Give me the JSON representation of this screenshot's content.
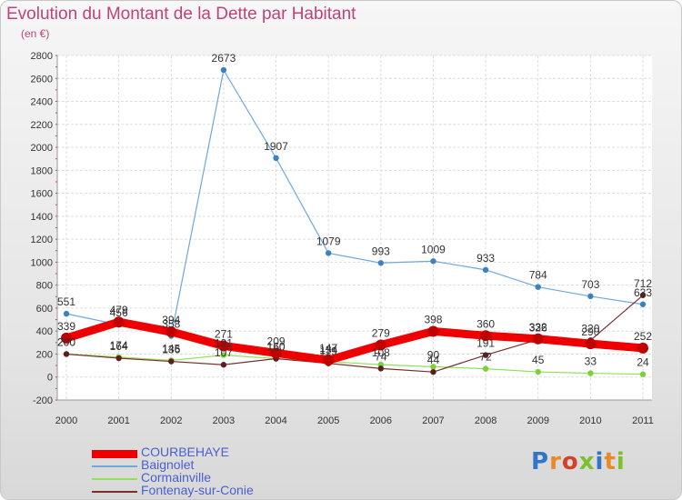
{
  "chart_title": "Evolution du Montant de la Dette par Habitant",
  "chart_subtitle": "(en €)",
  "logo_text": "Proxiti",
  "chart_data": {
    "type": "line",
    "title": "Evolution du Montant de la Dette par Habitant",
    "subtitle": "(en €)",
    "x": [
      "2000",
      "2001",
      "2002",
      "2003",
      "2004",
      "2005",
      "2006",
      "2007",
      "2008",
      "2009",
      "2010",
      "2011"
    ],
    "ylim": [
      -200,
      2800
    ],
    "yticks": [
      -200,
      0,
      200,
      400,
      600,
      800,
      1000,
      1200,
      1400,
      1600,
      1800,
      2000,
      2200,
      2400,
      2600,
      2800
    ],
    "grid": true,
    "legend_position": "bottom-left",
    "series": [
      {
        "name": "COURBEHAYE",
        "color": "#ee0000",
        "values": [
          339,
          479,
          394,
          271,
          209,
          147,
          279,
          398,
          360,
          332,
          290,
          252
        ]
      },
      {
        "name": "Baignolet",
        "color": "#6fa8dc",
        "values": [
          551,
          456,
          358,
          2673,
          1907,
          1079,
          993,
          1009,
          933,
          784,
          703,
          633
        ]
      },
      {
        "name": "Cormainville",
        "color": "#92e05a",
        "values": [
          200,
          174,
          145,
          191,
          160,
          134,
          108,
          90,
          72,
          45,
          33,
          24
        ]
      },
      {
        "name": "Fontenay-sur-Conie",
        "color": "#7a2f2f",
        "values": [
          200,
          164,
          136,
          107,
          160,
          119,
          74,
          44,
          191,
          326,
          320,
          712
        ]
      }
    ]
  }
}
